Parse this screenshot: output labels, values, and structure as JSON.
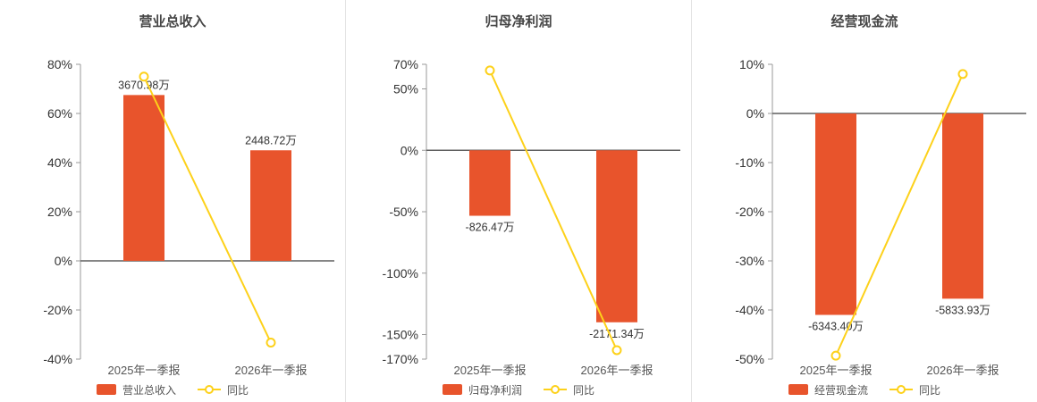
{
  "style": {
    "bar_color": "#e8542c",
    "line_color": "#fdd11a",
    "axis_color": "#999999",
    "zero_line_color": "#5f5f5f",
    "tick_color": "#333333",
    "value_label_color": "#333333",
    "category_color": "#555555",
    "title_color": "#454545",
    "divider_color": "#e3e3e3",
    "background": "#ffffff"
  },
  "chart_data": [
    {
      "type": "bar",
      "title": "营业总收入",
      "categories": [
        "2025年一季报",
        "2026年一季报"
      ],
      "bar_series": {
        "name": "营业总收入",
        "value_labels": [
          "3670.98万",
          "2448.72万"
        ],
        "pct_values": [
          67.5,
          45.0
        ]
      },
      "line_series": {
        "name": "同比",
        "pct_values": [
          75.0,
          -33.29
        ]
      },
      "ylim": [
        -40,
        80
      ],
      "yticks": [
        80,
        60,
        40,
        20,
        0,
        -20,
        -40
      ],
      "ytick_suffix": "%",
      "legend_position": "bottom",
      "grid": false
    },
    {
      "type": "bar",
      "title": "归母净利润",
      "categories": [
        "2025年一季报",
        "2026年一季报"
      ],
      "bar_series": {
        "name": "归母净利润",
        "value_labels": [
          "-826.47万",
          "-2171.34万"
        ],
        "pct_values": [
          -53.3,
          -140.0
        ]
      },
      "line_series": {
        "name": "同比",
        "pct_values": [
          65.0,
          -162.7
        ]
      },
      "ylim": [
        -170,
        70
      ],
      "yticks": [
        70,
        50,
        0,
        -50,
        -100,
        -150,
        -170
      ],
      "ytick_suffix": "%",
      "legend_position": "bottom",
      "grid": false
    },
    {
      "type": "bar",
      "title": "经营现金流",
      "categories": [
        "2025年一季报",
        "2026年一季报"
      ],
      "bar_series": {
        "name": "经营现金流",
        "value_labels": [
          "-6343.40万",
          "-5833.93万"
        ],
        "pct_values": [
          -41.0,
          -37.7
        ]
      },
      "line_series": {
        "name": "同比",
        "pct_values": [
          -49.3,
          8.03
        ]
      },
      "ylim": [
        -50,
        10
      ],
      "yticks": [
        10,
        0,
        -10,
        -20,
        -30,
        -40,
        -50
      ],
      "ytick_suffix": "%",
      "legend_position": "bottom",
      "grid": false
    }
  ]
}
